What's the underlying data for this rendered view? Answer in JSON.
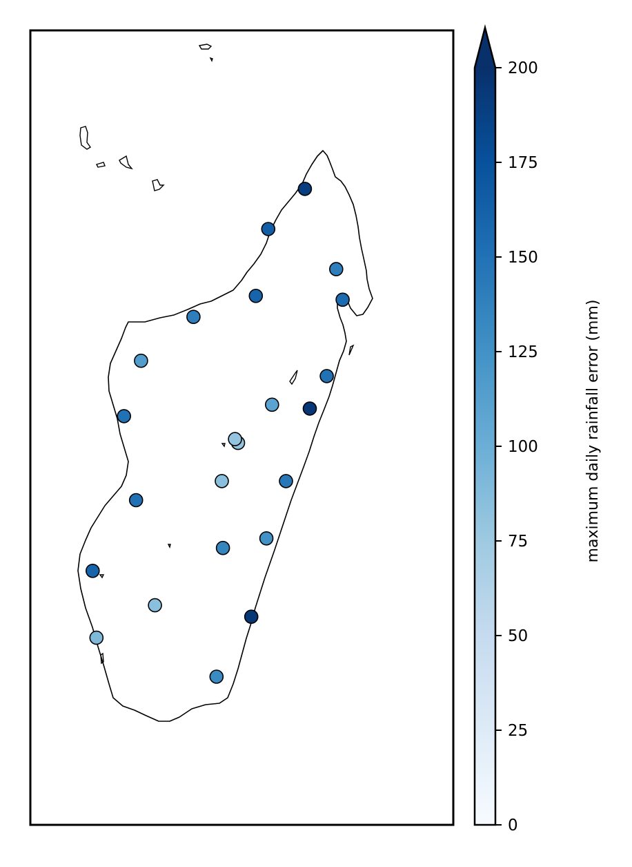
{
  "chart_data": {
    "type": "scatter",
    "title": "",
    "colorbar": {
      "label": "maximum daily rainfall error (mm)",
      "min": 0,
      "max": 200,
      "ticks": [
        "0",
        "25",
        "50",
        "75",
        "100",
        "125",
        "150",
        "175",
        "200"
      ],
      "extend": "max",
      "colormap": [
        "#f7fbff",
        "#deebf7",
        "#c6dbef",
        "#9ecae1",
        "#6baed6",
        "#4292c6",
        "#2171b5",
        "#08519c",
        "#08306b"
      ]
    },
    "points": [
      {
        "lon": 49.27,
        "lat": -12.35,
        "value": 190
      },
      {
        "lon": 48.3,
        "lat": -13.4,
        "value": 165
      },
      {
        "lon": 50.1,
        "lat": -14.45,
        "value": 140
      },
      {
        "lon": 50.27,
        "lat": -15.25,
        "value": 155
      },
      {
        "lon": 47.97,
        "lat": -15.15,
        "value": 160
      },
      {
        "lon": 46.32,
        "lat": -15.7,
        "value": 140
      },
      {
        "lon": 44.93,
        "lat": -16.85,
        "value": 115
      },
      {
        "lon": 49.85,
        "lat": -17.25,
        "value": 150
      },
      {
        "lon": 48.4,
        "lat": -18.0,
        "value": 110
      },
      {
        "lon": 49.4,
        "lat": -18.1,
        "value": 195
      },
      {
        "lon": 44.48,
        "lat": -18.3,
        "value": 150
      },
      {
        "lon": 47.5,
        "lat": -19.0,
        "value": 80
      },
      {
        "lon": 47.42,
        "lat": -18.9,
        "value": 80
      },
      {
        "lon": 47.07,
        "lat": -20.0,
        "value": 85
      },
      {
        "lon": 48.77,
        "lat": -20.0,
        "value": 145
      },
      {
        "lon": 44.8,
        "lat": -20.5,
        "value": 150
      },
      {
        "lon": 48.25,
        "lat": -21.5,
        "value": 125
      },
      {
        "lon": 47.1,
        "lat": -21.75,
        "value": 135
      },
      {
        "lon": 43.65,
        "lat": -22.35,
        "value": 160
      },
      {
        "lon": 45.3,
        "lat": -23.25,
        "value": 85
      },
      {
        "lon": 47.85,
        "lat": -23.55,
        "value": 195
      },
      {
        "lon": 43.75,
        "lat": -24.1,
        "value": 90
      },
      {
        "lon": 46.93,
        "lat": -25.12,
        "value": 130
      }
    ],
    "extent": {
      "lon": [
        42.0,
        53.2
      ],
      "lat": [
        -29.0,
        -8.2
      ]
    }
  }
}
